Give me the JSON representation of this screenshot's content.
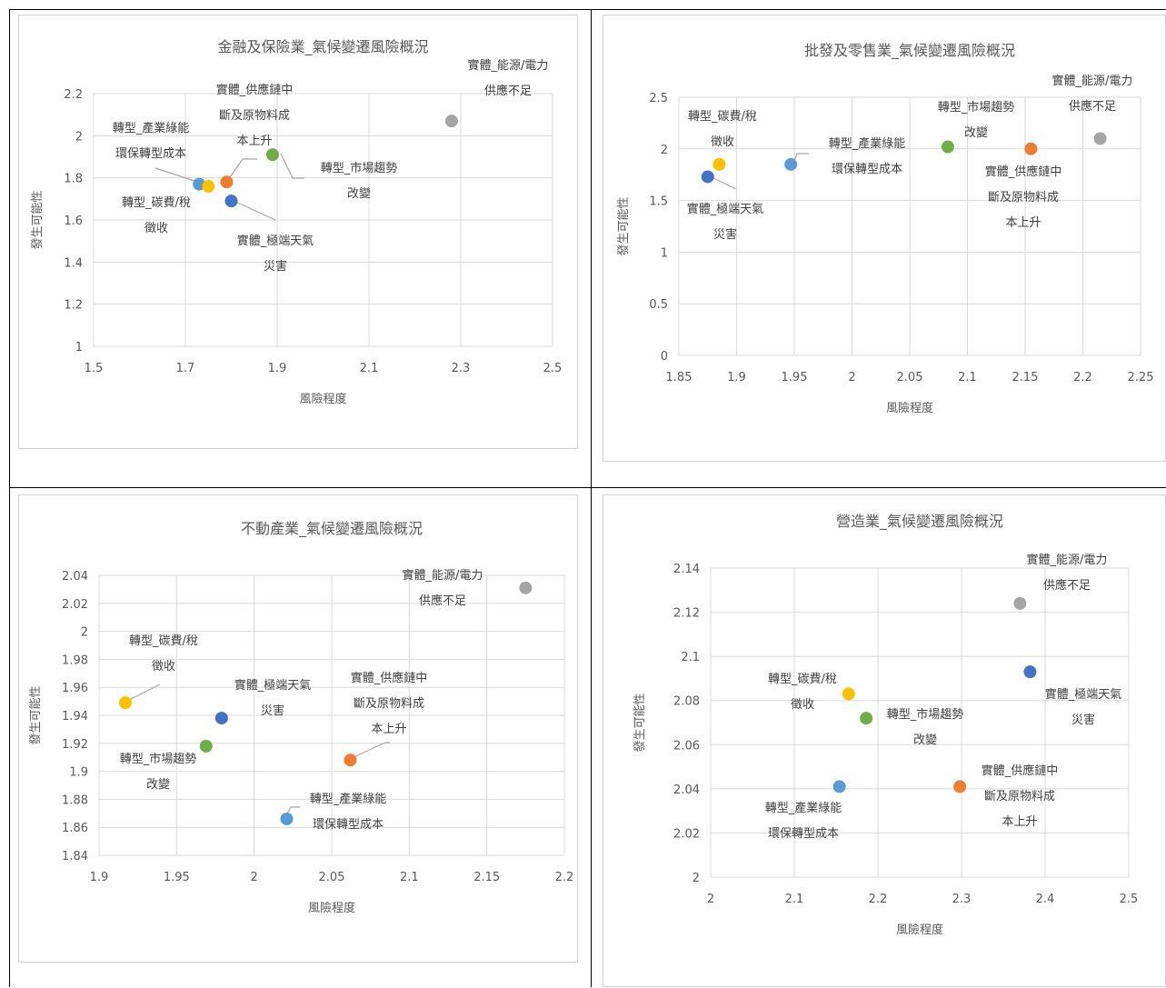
{
  "colors": {
    "grid": "#d9d9d9",
    "tick_text": "#595959",
    "title_text": "#595959",
    "label_text": "#404040",
    "leader": "#a6a6a6"
  },
  "chart_data": [
    {
      "type": "scatter",
      "title": "金融及保險業_氣候變遷風險概況",
      "xlabel": "風險程度",
      "ylabel": "發生可能性",
      "xlim": [
        1.5,
        2.5
      ],
      "ylim": [
        1,
        2.2
      ],
      "xticks": [
        "1.5",
        "1.7",
        "1.9",
        "2.1",
        "2.3",
        "2.5"
      ],
      "yticks": [
        "1",
        "1.2",
        "1.4",
        "1.6",
        "1.8",
        "2",
        "2.2"
      ],
      "grid": true,
      "points": [
        {
          "x": 2.28,
          "y": 2.07,
          "color": "#a5a5a5",
          "label": [
            "實體_能源/電力",
            "供應不足"
          ]
        },
        {
          "x": 1.79,
          "y": 1.78,
          "color": "#ed7d31",
          "label": [
            "實體_供應鏈中",
            "斷及原物料成",
            "本上升"
          ]
        },
        {
          "x": 1.89,
          "y": 1.91,
          "color": "#70ad47",
          "label": [
            "轉型_市場趨勢",
            "改變"
          ]
        },
        {
          "x": 1.73,
          "y": 1.77,
          "color": "#5b9bd5",
          "label": [
            "轉型_產業綠能",
            "環保轉型成本"
          ]
        },
        {
          "x": 1.75,
          "y": 1.76,
          "color": "#ffc000",
          "label": [
            "轉型_碳費/稅",
            "徵收"
          ]
        },
        {
          "x": 1.8,
          "y": 1.69,
          "color": "#4472c4",
          "label": [
            "實體_極端天氣",
            "災害"
          ]
        }
      ]
    },
    {
      "type": "scatter",
      "title": "批發及零售業_氣候變遷風險概況",
      "xlabel": "風險程度",
      "ylabel": "發生可能性",
      "xlim": [
        1.85,
        2.25
      ],
      "ylim": [
        0,
        2.5
      ],
      "xticks": [
        "1.85",
        "1.9",
        "1.95",
        "2",
        "2.05",
        "2.1",
        "2.15",
        "2.2",
        "2.25"
      ],
      "yticks": [
        "0",
        "0.5",
        "1",
        "1.5",
        "2",
        "2.5"
      ],
      "grid": true,
      "points": [
        {
          "x": 2.215,
          "y": 2.1,
          "color": "#a5a5a5",
          "label": [
            "實體_能源/電力",
            "供應不足"
          ]
        },
        {
          "x": 2.155,
          "y": 2.0,
          "color": "#ed7d31",
          "label": [
            "實體_供應鏈中",
            "斷及原物料成",
            "本上升"
          ]
        },
        {
          "x": 2.083,
          "y": 2.02,
          "color": "#70ad47",
          "label": [
            "轉型_市場趨勢",
            "改變"
          ]
        },
        {
          "x": 1.947,
          "y": 1.85,
          "color": "#5b9bd5",
          "label": [
            "轉型_產業綠能",
            "環保轉型成本"
          ]
        },
        {
          "x": 1.885,
          "y": 1.85,
          "color": "#ffc000",
          "label": [
            "轉型_碳費/稅",
            "徵收"
          ]
        },
        {
          "x": 1.875,
          "y": 1.73,
          "color": "#4472c4",
          "label": [
            "實體_極端天氣",
            "災害"
          ]
        }
      ]
    },
    {
      "type": "scatter",
      "title": "不動產業_氣候變遷風險概況",
      "xlabel": "風險程度",
      "ylabel": "發生可能性",
      "xlim": [
        1.9,
        2.2
      ],
      "ylim": [
        1.84,
        2.04
      ],
      "xticks": [
        "1.9",
        "1.95",
        "2",
        "2.05",
        "2.1",
        "2.15",
        "2.2"
      ],
      "yticks": [
        "1.84",
        "1.86",
        "1.88",
        "1.9",
        "1.92",
        "1.94",
        "1.96",
        "1.98",
        "2",
        "2.02",
        "2.04"
      ],
      "grid": true,
      "points": [
        {
          "x": 2.175,
          "y": 2.031,
          "color": "#a5a5a5",
          "label": [
            "實體_能源/電力",
            "供應不足"
          ]
        },
        {
          "x": 2.062,
          "y": 1.908,
          "color": "#ed7d31",
          "label": [
            "實體_供應鏈中",
            "斷及原物料成",
            "本上升"
          ]
        },
        {
          "x": 1.969,
          "y": 1.918,
          "color": "#70ad47",
          "label": [
            "轉型_市場趨勢",
            "改變"
          ]
        },
        {
          "x": 2.021,
          "y": 1.866,
          "color": "#5b9bd5",
          "label": [
            "轉型_產業綠能",
            "環保轉型成本"
          ]
        },
        {
          "x": 1.917,
          "y": 1.949,
          "color": "#ffc000",
          "label": [
            "轉型_碳費/稅",
            "徵收"
          ]
        },
        {
          "x": 1.979,
          "y": 1.938,
          "color": "#4472c4",
          "label": [
            "實體_極端天氣",
            "災害"
          ]
        }
      ]
    },
    {
      "type": "scatter",
      "title": "營造業_氣候變遷風險概況",
      "xlabel": "風險程度",
      "ylabel": "發生可能性",
      "xlim": [
        2,
        2.5
      ],
      "ylim": [
        2,
        2.14
      ],
      "xticks": [
        "2",
        "2.1",
        "2.2",
        "2.3",
        "2.4",
        "2.5"
      ],
      "yticks": [
        "2",
        "2.02",
        "2.04",
        "2.06",
        "2.08",
        "2.1",
        "2.12",
        "2.14"
      ],
      "grid": true,
      "points": [
        {
          "x": 2.37,
          "y": 2.124,
          "color": "#a5a5a5",
          "label": [
            "實體_能源/電力",
            "供應不足"
          ]
        },
        {
          "x": 2.298,
          "y": 2.041,
          "color": "#ed7d31",
          "label": [
            "實體_供應鏈中",
            "斷及原物料成",
            "本上升"
          ]
        },
        {
          "x": 2.186,
          "y": 2.072,
          "color": "#70ad47",
          "label": [
            "轉型_市場趨勢",
            "改變"
          ]
        },
        {
          "x": 2.154,
          "y": 2.041,
          "color": "#5b9bd5",
          "label": [
            "轉型_產業綠能",
            "環保轉型成本"
          ]
        },
        {
          "x": 2.165,
          "y": 2.083,
          "color": "#ffc000",
          "label": [
            "轉型_碳費/稅",
            "徵收"
          ]
        },
        {
          "x": 2.382,
          "y": 2.093,
          "color": "#4472c4",
          "label": [
            "實體_極端天氣",
            "災害"
          ]
        }
      ]
    }
  ]
}
